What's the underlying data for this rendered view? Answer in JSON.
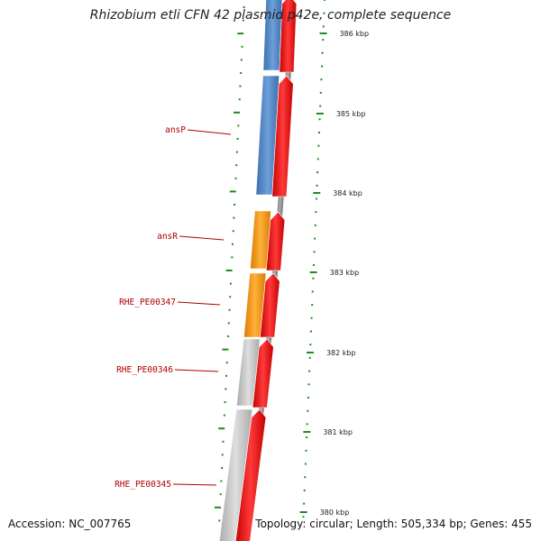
{
  "title": "Rhizobium etli CFN 42 plasmid p42e, complete sequence",
  "footer": {
    "accession": "Accession: NC_007765",
    "topology": "Topology: circular; Length: 505,334 bp; Genes: 455"
  },
  "colors": {
    "background": "#ffffff",
    "backbone": "#8c8c8c",
    "tick": "#1e8c1e",
    "label": "#b00000",
    "forward_strand": "#ee1111",
    "cog_blue": "#4f86c6",
    "cog_orange": "#f2930a",
    "cog_gray": "#c4c4c4"
  },
  "scale": {
    "unit": "kbp",
    "labels": [
      "386 kbp",
      "385 kbp",
      "384 kbp",
      "383 kbp",
      "382 kbp",
      "381 kbp",
      "380 kbp"
    ]
  },
  "gene_labels": [
    "ansP",
    "ansR",
    "RHE_PE00347",
    "RHE_PE00346",
    "RHE_PE00345"
  ],
  "icons": [
    "plasmid-backbone-arc",
    "forward-gene-arrow",
    "cog-feature-block"
  ]
}
